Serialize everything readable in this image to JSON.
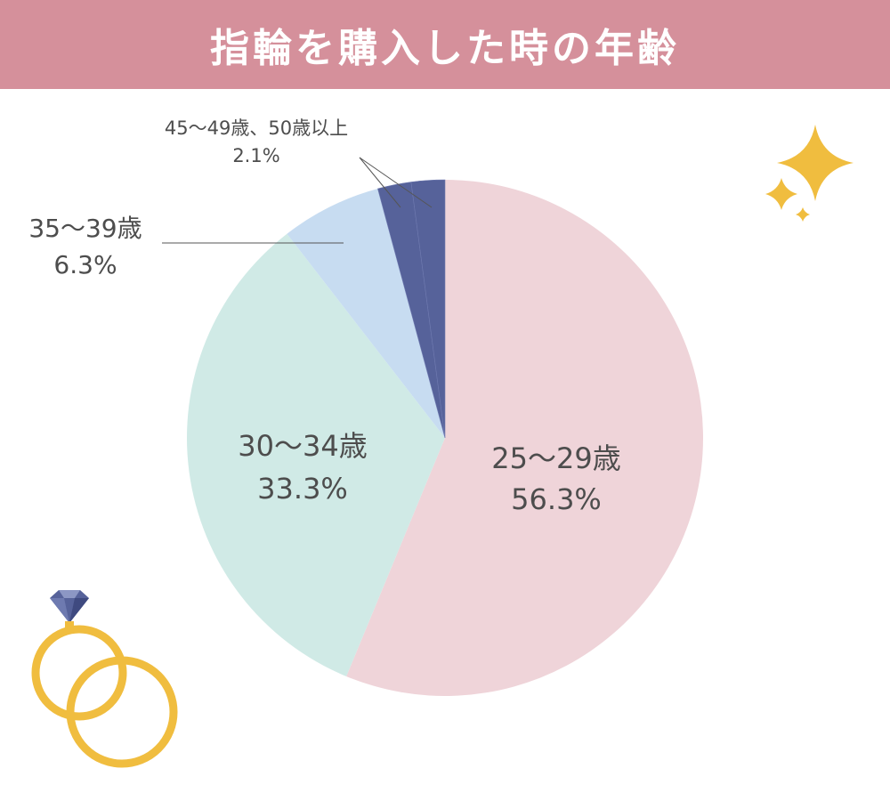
{
  "header": {
    "title": "指輪を購入した時の年齢"
  },
  "colors": {
    "header_bg": "#d5909b",
    "gold": "#f0bd3f",
    "label_text": "#4d4d4d",
    "leader_line": "#555555"
  },
  "decorations": {
    "sparkle": "sparkle-icon",
    "rings": "wedding-rings-icon"
  },
  "chart_data": {
    "type": "pie",
    "title": "指輪を購入した時の年齢",
    "start_angle_deg": 0,
    "direction": "clockwise",
    "legend": "none",
    "slices": [
      {
        "label": "25〜29歳",
        "value": 56.3,
        "value_label": "56.3%",
        "color": "#efd4d9"
      },
      {
        "label": "30〜34歳",
        "value": 33.3,
        "value_label": "33.3%",
        "color": "#d0eae6"
      },
      {
        "label": "35〜39歳",
        "value": 6.3,
        "value_label": "6.3%",
        "color": "#c7dcf1"
      },
      {
        "label": "45〜49歳",
        "value": 2.1,
        "value_label": "",
        "color": "#56629a"
      },
      {
        "label": "50歳以上",
        "value": 2.1,
        "value_label": "",
        "color": "#56629a"
      }
    ],
    "annotations": {
      "small_group_label": "45〜49歳、50歳以上",
      "small_group_value": "2.1%"
    }
  }
}
